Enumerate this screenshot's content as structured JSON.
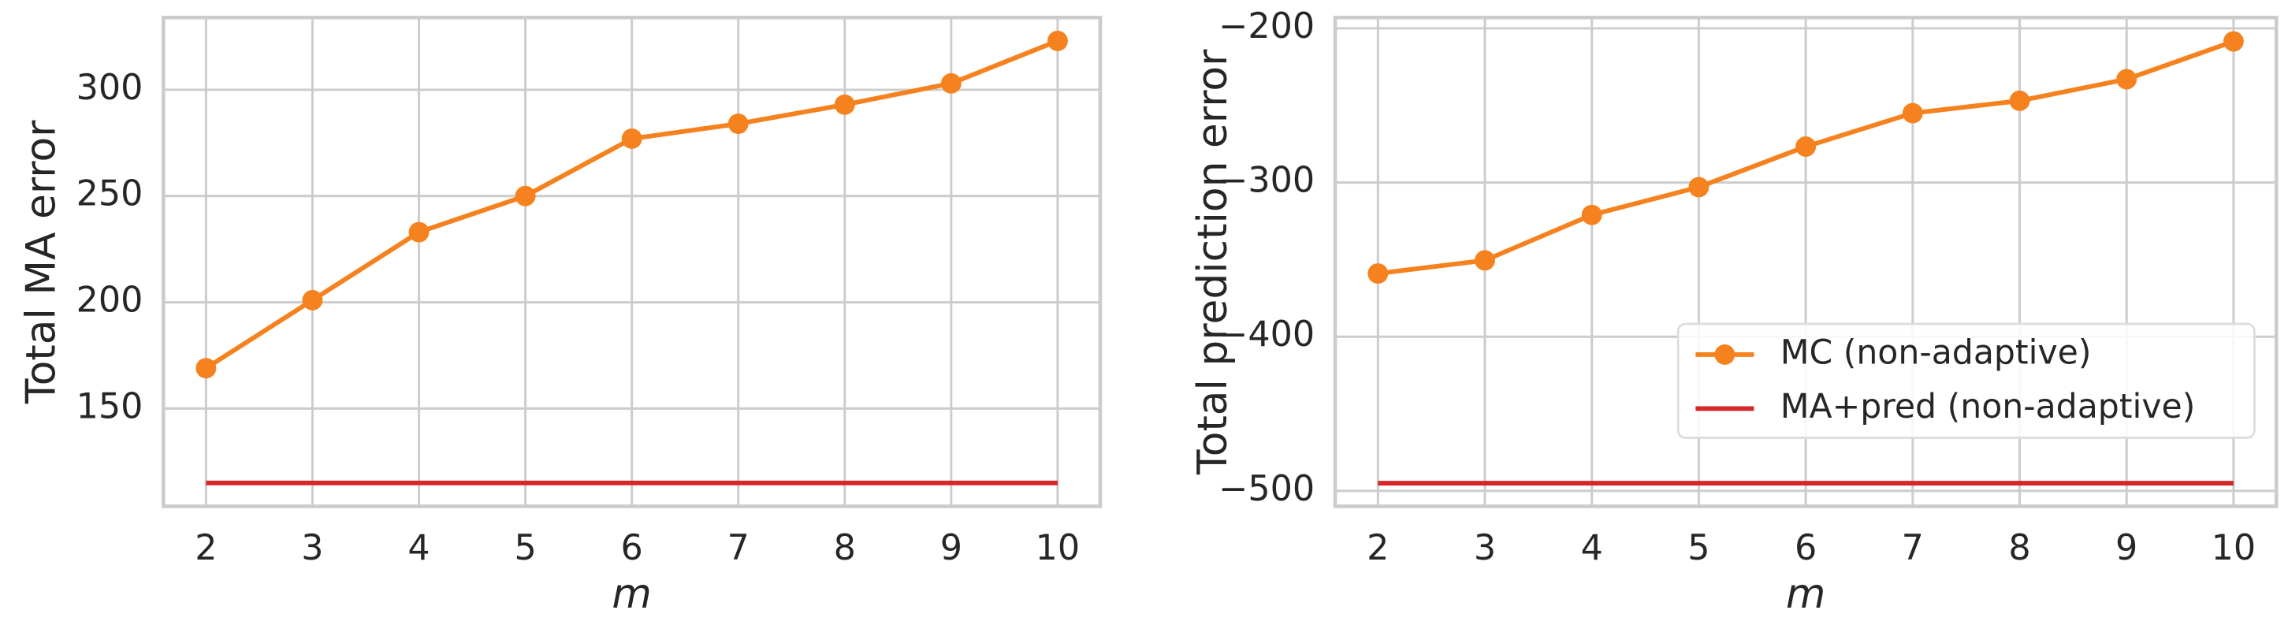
{
  "chart_data": [
    {
      "type": "line",
      "ylabel": "Total MA error",
      "xlabel": "m",
      "x": [
        2,
        3,
        4,
        5,
        6,
        7,
        8,
        9,
        10
      ],
      "series": [
        {
          "color": "#f5821f",
          "marker": "o",
          "values": [
            169,
            201,
            233,
            250,
            277,
            284,
            293,
            303,
            323
          ]
        },
        {
          "color": "#d62728",
          "values": [
            115,
            115,
            115,
            115,
            115,
            115,
            115,
            115,
            115
          ]
        }
      ],
      "xlim": [
        1.6,
        10.4
      ],
      "xticks": [
        2,
        3,
        4,
        5,
        6,
        7,
        8,
        9,
        10
      ],
      "ylim": [
        104,
        334
      ],
      "yticks": [
        150,
        200,
        250,
        300
      ],
      "grid": true
    },
    {
      "type": "line",
      "ylabel": "Total prediction error",
      "xlabel": "m",
      "x": [
        2,
        3,
        4,
        5,
        6,
        7,
        8,
        9,
        10
      ],
      "series": [
        {
          "name": "MC (non-adaptive)",
          "color": "#f5821f",
          "marker": "o",
          "values": [
            -359,
            -350.5,
            -321,
            -303,
            -276.7,
            -255,
            -247,
            -233,
            -208.5
          ]
        },
        {
          "name": "MA+pred (non-adaptive)",
          "color": "#d62728",
          "values": [
            -495,
            -495,
            -495,
            -495,
            -495,
            -495,
            -495,
            -495,
            -495
          ]
        }
      ],
      "xlim": [
        1.6,
        10.4
      ],
      "xticks": [
        2,
        3,
        4,
        5,
        6,
        7,
        8,
        9,
        10
      ],
      "ylim": [
        -510,
        -193
      ],
      "yticks": [
        {
          "value": -500,
          "label": "−500"
        },
        {
          "value": -400,
          "label": "−400"
        },
        {
          "value": -300,
          "label": "−300"
        },
        {
          "value": -200,
          "label": "−200"
        }
      ],
      "grid": true,
      "legend": "lower right"
    }
  ]
}
